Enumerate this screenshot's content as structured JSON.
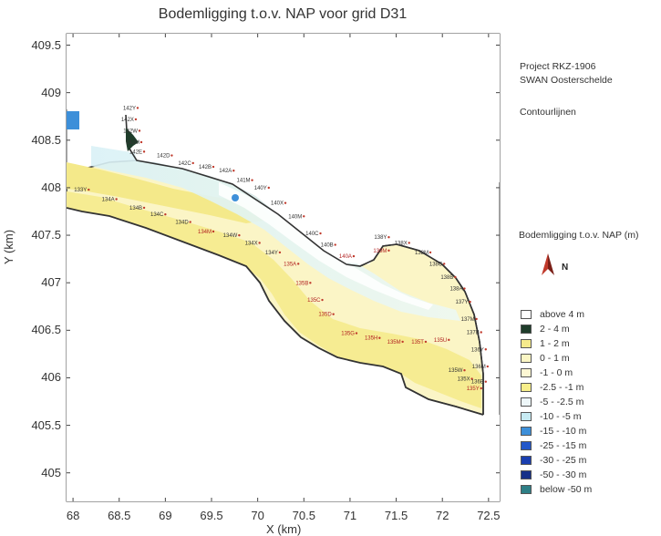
{
  "title": "Bodemligging t.o.v. NAP voor grid D31",
  "side_text": {
    "line1": "Project RKZ-1906",
    "line2": "SWAN Oosterschelde",
    "line3": "Contourlijnen"
  },
  "legend_title": "Bodemligging t.o.v. NAP (m)",
  "north_label": "N",
  "legend": [
    {
      "label": "above 4 m",
      "color": "#ffffff"
    },
    {
      "label": "2 - 4 m",
      "color": "#1f3d2b"
    },
    {
      "label": "1 - 2 m",
      "color": "#f5ea8c"
    },
    {
      "label": "0 - 1 m",
      "color": "#fbf6c4"
    },
    {
      "label": "-1 - 0 m",
      "color": "#fdf7d3"
    },
    {
      "label": "-2.5 - -1 m",
      "color": "#f7ee8a"
    },
    {
      "label": "-5 - -2.5 m",
      "color": "#eef7f9"
    },
    {
      "label": "-10 - -5 m",
      "color": "#c7ebf3"
    },
    {
      "label": "-15 - -10 m",
      "color": "#3d8fd9"
    },
    {
      "label": "-25 - -15 m",
      "color": "#2357c9"
    },
    {
      "label": "-30 - -25 m",
      "color": "#1a3fb0"
    },
    {
      "label": "-50 - -30 m",
      "color": "#152f88"
    },
    {
      "label": "below -50 m",
      "color": "#2e7f86"
    }
  ],
  "axes": {
    "xlabel": "X (km)",
    "ylabel": "Y (km)",
    "x_ticks": [
      "68",
      "68.5",
      "69",
      "69.5",
      "70",
      "70.5",
      "71",
      "71.5",
      "72",
      "72.5"
    ],
    "y_ticks": [
      "409.5",
      "409",
      "408.5",
      "408",
      "407.5",
      "407",
      "406.5",
      "406",
      "405.5",
      "405"
    ]
  },
  "point_labels": [
    {
      "label": "133Y",
      "x": 68.15,
      "y": 407.96,
      "color": "#333333"
    },
    {
      "label": "134A",
      "x": 68.45,
      "y": 407.86,
      "color": "#333333"
    },
    {
      "label": "134B",
      "x": 68.75,
      "y": 407.77,
      "color": "#333333"
    },
    {
      "label": "134C",
      "x": 68.98,
      "y": 407.7,
      "color": "#333333"
    },
    {
      "label": "134D",
      "x": 69.25,
      "y": 407.62,
      "color": "#333333"
    },
    {
      "label": "134M",
      "x": 69.5,
      "y": 407.52,
      "color": "#b22222"
    },
    {
      "label": "134W",
      "x": 69.78,
      "y": 407.48,
      "color": "#333333"
    },
    {
      "label": "134X",
      "x": 70.0,
      "y": 407.4,
      "color": "#333333"
    },
    {
      "label": "134Y",
      "x": 70.22,
      "y": 407.3,
      "color": "#333333"
    },
    {
      "label": "135A",
      "x": 70.42,
      "y": 407.18,
      "color": "#b22222"
    },
    {
      "label": "135B",
      "x": 70.55,
      "y": 406.98,
      "color": "#b22222"
    },
    {
      "label": "135C",
      "x": 70.68,
      "y": 406.8,
      "color": "#b22222"
    },
    {
      "label": "135D",
      "x": 70.8,
      "y": 406.65,
      "color": "#b22222"
    },
    {
      "label": "135G",
      "x": 71.05,
      "y": 406.45,
      "color": "#b22222"
    },
    {
      "label": "135H",
      "x": 71.3,
      "y": 406.4,
      "color": "#b22222"
    },
    {
      "label": "135M",
      "x": 71.55,
      "y": 406.36,
      "color": "#b22222"
    },
    {
      "label": "135T",
      "x": 71.8,
      "y": 406.36,
      "color": "#b22222"
    },
    {
      "label": "135U",
      "x": 72.05,
      "y": 406.38,
      "color": "#b22222"
    },
    {
      "label": "135W",
      "x": 72.22,
      "y": 406.06,
      "color": "#333333"
    },
    {
      "label": "135X",
      "x": 72.3,
      "y": 405.97,
      "color": "#333333"
    },
    {
      "label": "135Y",
      "x": 72.4,
      "y": 405.87,
      "color": "#b22222"
    },
    {
      "label": "142Y",
      "x": 68.68,
      "y": 408.82,
      "color": "#333333"
    },
    {
      "label": "142X",
      "x": 68.66,
      "y": 408.7,
      "color": "#333333"
    },
    {
      "label": "142W",
      "x": 68.7,
      "y": 408.58,
      "color": "#333333"
    },
    {
      "label": "142M",
      "x": 68.72,
      "y": 408.46,
      "color": "#333333"
    },
    {
      "label": "142E",
      "x": 68.75,
      "y": 408.36,
      "color": "#333333"
    },
    {
      "label": "142D",
      "x": 69.05,
      "y": 408.32,
      "color": "#333333"
    },
    {
      "label": "142C",
      "x": 69.28,
      "y": 408.24,
      "color": "#333333"
    },
    {
      "label": "142B",
      "x": 69.5,
      "y": 408.2,
      "color": "#333333"
    },
    {
      "label": "142A",
      "x": 69.72,
      "y": 408.16,
      "color": "#333333"
    },
    {
      "label": "141M",
      "x": 69.92,
      "y": 408.06,
      "color": "#333333"
    },
    {
      "label": "140Y",
      "x": 70.1,
      "y": 407.98,
      "color": "#333333"
    },
    {
      "label": "140X",
      "x": 70.28,
      "y": 407.82,
      "color": "#333333"
    },
    {
      "label": "140M",
      "x": 70.48,
      "y": 407.68,
      "color": "#333333"
    },
    {
      "label": "140C",
      "x": 70.66,
      "y": 407.5,
      "color": "#333333"
    },
    {
      "label": "140B",
      "x": 70.82,
      "y": 407.38,
      "color": "#333333"
    },
    {
      "label": "140A",
      "x": 71.02,
      "y": 407.26,
      "color": "#b22222"
    },
    {
      "label": "139M",
      "x": 71.4,
      "y": 407.32,
      "color": "#b22222"
    },
    {
      "label": "138Y",
      "x": 71.4,
      "y": 407.46,
      "color": "#333333"
    },
    {
      "label": "138X",
      "x": 71.62,
      "y": 407.4,
      "color": "#333333"
    },
    {
      "label": "138M",
      "x": 71.85,
      "y": 407.3,
      "color": "#333333"
    },
    {
      "label": "138C",
      "x": 72.0,
      "y": 407.18,
      "color": "#333333"
    },
    {
      "label": "138B",
      "x": 72.12,
      "y": 407.04,
      "color": "#333333"
    },
    {
      "label": "138A",
      "x": 72.22,
      "y": 406.92,
      "color": "#333333"
    },
    {
      "label": "137Y",
      "x": 72.28,
      "y": 406.78,
      "color": "#333333"
    },
    {
      "label": "137M",
      "x": 72.35,
      "y": 406.6,
      "color": "#333333"
    },
    {
      "label": "137B",
      "x": 72.4,
      "y": 406.46,
      "color": "#333333"
    },
    {
      "label": "136Y",
      "x": 72.45,
      "y": 406.28,
      "color": "#333333"
    },
    {
      "label": "136M",
      "x": 72.47,
      "y": 406.1,
      "color": "#333333"
    },
    {
      "label": "136B",
      "x": 72.45,
      "y": 405.94,
      "color": "#333333"
    }
  ]
}
